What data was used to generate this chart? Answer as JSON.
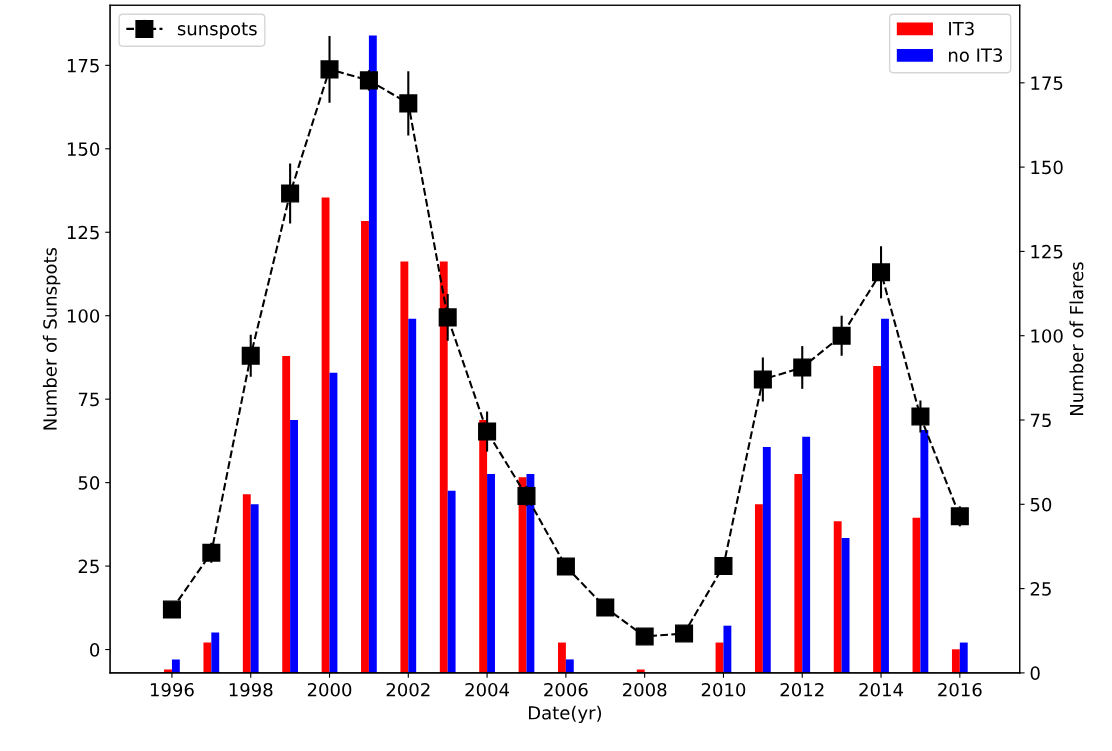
{
  "chart_data": {
    "type": "bar",
    "xlabel": "Date(yr)",
    "ylabel": "Number of Sunspots",
    "y2label": "Number of Flares",
    "x": [
      1996,
      1997,
      1998,
      1999,
      2000,
      2001,
      2002,
      2003,
      2004,
      2005,
      2006,
      2007,
      2008,
      2009,
      2010,
      2011,
      2012,
      2013,
      2014,
      2015,
      2016
    ],
    "xlim": [
      1994.43,
      2017.52
    ],
    "xticks": [
      1996,
      1998,
      2000,
      2002,
      2004,
      2006,
      2008,
      2010,
      2012,
      2014,
      2016
    ],
    "ylim": [
      -7,
      193
    ],
    "yticks": [
      0,
      25,
      50,
      75,
      100,
      125,
      150,
      175
    ],
    "y2lim": [
      0,
      198
    ],
    "y2ticks": [
      0,
      25,
      50,
      75,
      100,
      125,
      150,
      175
    ],
    "legend": "top",
    "grid": false,
    "series": [
      {
        "name": "sunspots",
        "type": "line",
        "axis": "y",
        "color": "#000000",
        "marker": "square",
        "line_style": "dashed",
        "values": [
          12,
          29,
          88,
          136.6,
          173.8,
          170.5,
          163.6,
          99.5,
          65.3,
          46,
          24.9,
          12.6,
          3.9,
          4.8,
          25,
          80.9,
          84.5,
          94,
          113,
          69.8,
          39.9
        ],
        "errors": [
          2,
          3,
          6.3,
          9,
          10,
          3,
          9.6,
          7,
          6,
          3,
          2,
          1,
          1,
          1,
          2,
          6.6,
          6.4,
          6,
          7.8,
          4.8,
          3
        ]
      },
      {
        "name": "IT3",
        "axis": "y2",
        "color": "#ff0000",
        "values": [
          1,
          9,
          53,
          94,
          141,
          134,
          122,
          122,
          75,
          58,
          9,
          0,
          1,
          0,
          9,
          50,
          59,
          45,
          91,
          46,
          7
        ]
      },
      {
        "name": "no IT3",
        "axis": "y2",
        "color": "#0000ff",
        "values": [
          4,
          12,
          50,
          75,
          89,
          189,
          105,
          54,
          59,
          59,
          4,
          0,
          0,
          0,
          14,
          67,
          70,
          40,
          105,
          72,
          9
        ]
      }
    ]
  }
}
